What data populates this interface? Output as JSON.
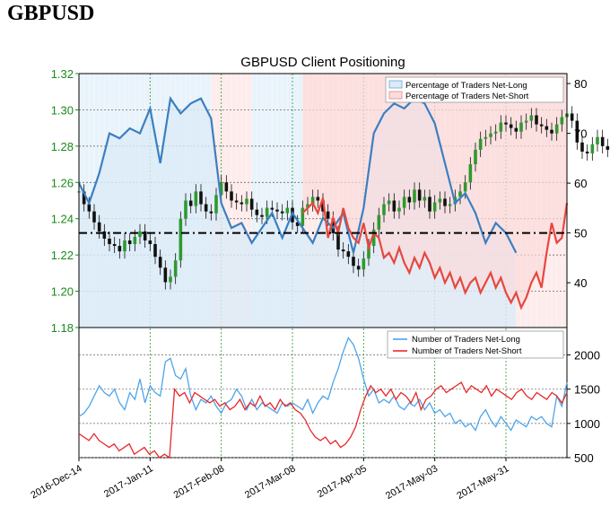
{
  "page_title": "GBPUSD",
  "chart_data": [
    {
      "type": "line",
      "title": "GBPUSD Client Positioning",
      "left_axis": {
        "ticks": [
          "1.18",
          "1.20",
          "1.22",
          "1.24",
          "1.26",
          "1.28",
          "1.30",
          "1.32"
        ],
        "range": [
          1.18,
          1.32
        ],
        "color": "#1a8a1a"
      },
      "right_axis": {
        "ticks": [
          "40",
          "50",
          "60",
          "70",
          "80"
        ],
        "range": [
          31,
          82
        ]
      },
      "reference_line": {
        "value": 50,
        "axis": "right",
        "style": "dash-dot"
      },
      "legend": {
        "placement": "top-right",
        "entries": [
          "Percentage of Traders Net-Long",
          "Percentage of Traders Net-Short"
        ]
      },
      "x_tick_labels": [
        "2016-Dec-14",
        "2017-Jan-11",
        "2017-Feb-08",
        "2017-Mar-08",
        "2017-Apr-05",
        "2017-May-03",
        "2017-May-31"
      ],
      "series": [
        {
          "name": "Percentage of Traders Net-Long",
          "color": "#3b7fc1",
          "fill": "#dcebf7",
          "x": [
            0,
            2,
            4,
            6,
            8,
            10,
            12,
            14,
            16,
            18,
            20,
            22,
            24,
            26,
            28,
            30,
            32,
            34,
            36,
            38,
            40,
            42,
            44,
            46,
            48,
            50,
            52,
            54,
            56,
            58,
            60,
            62,
            64,
            66,
            68,
            70,
            72,
            74,
            76,
            78,
            80,
            82,
            84,
            86
          ],
          "y": [
            60,
            56,
            62,
            70,
            69,
            71,
            70,
            75,
            64,
            77,
            74,
            76,
            77,
            73,
            56,
            51,
            52,
            48,
            51,
            54,
            49,
            54,
            51,
            48,
            53,
            51,
            54,
            46,
            55,
            70,
            74,
            76,
            75,
            77,
            76,
            72,
            64,
            56,
            58,
            54,
            48,
            52,
            50,
            46
          ]
        },
        {
          "name": "Percentage of Traders Net-Short",
          "color": "#e8473e",
          "fill": "#fbdcdc",
          "x": [
            44,
            45,
            46,
            47,
            48,
            49,
            50,
            51,
            52,
            53,
            54,
            55,
            56,
            57,
            58,
            59,
            60,
            61,
            62,
            63,
            64,
            65,
            66,
            67,
            68,
            69,
            70,
            71,
            72,
            73,
            74,
            75,
            76,
            77,
            78,
            79,
            80,
            81,
            82,
            83,
            84,
            85,
            86,
            87,
            88,
            89,
            90,
            91,
            92,
            93,
            94,
            95,
            96
          ],
          "y": [
            54,
            55,
            56,
            54,
            57,
            49,
            53,
            50,
            55,
            51,
            49,
            48,
            52,
            47,
            50,
            49,
            45,
            46,
            44,
            47,
            44,
            42,
            45,
            43,
            46,
            44,
            41,
            43,
            40,
            42,
            39,
            41,
            38,
            40,
            41,
            38,
            40,
            42,
            39,
            41,
            38,
            36,
            38,
            35,
            37,
            40,
            42,
            39,
            46,
            52,
            48,
            49,
            56
          ]
        },
        {
          "name": "GBPUSD price",
          "type": "candlestick-approx",
          "axis": "left",
          "y": [
            1.255,
            1.248,
            1.244,
            1.238,
            1.233,
            1.229,
            1.226,
            1.225,
            1.222,
            1.228,
            1.226,
            1.23,
            1.233,
            1.228,
            1.226,
            1.219,
            1.213,
            1.205,
            1.208,
            1.217,
            1.24,
            1.25,
            1.247,
            1.255,
            1.248,
            1.244,
            1.243,
            1.253,
            1.26,
            1.255,
            1.25,
            1.249,
            1.248,
            1.251,
            1.245,
            1.242,
            1.241,
            1.246,
            1.245,
            1.244,
            1.243,
            1.246,
            1.238,
            1.236,
            1.246,
            1.248,
            1.252,
            1.25,
            1.244,
            1.24,
            1.232,
            1.223,
            1.222,
            1.219,
            1.214,
            1.212,
            1.218,
            1.225,
            1.234,
            1.242,
            1.248,
            1.25,
            1.244,
            1.246,
            1.252,
            1.249,
            1.256,
            1.25,
            1.252,
            1.244,
            1.249,
            1.251,
            1.247,
            1.248,
            1.252,
            1.255,
            1.26,
            1.27,
            1.278,
            1.284,
            1.285,
            1.287,
            1.288,
            1.293,
            1.292,
            1.29,
            1.288,
            1.293,
            1.294,
            1.297,
            1.292,
            1.291,
            1.289,
            1.287,
            1.292,
            1.296,
            1.298,
            1.294,
            1.282,
            1.277,
            1.276,
            1.281,
            1.285,
            1.28,
            1.278,
            1.28,
            1.276,
            1.286,
            1.277,
            1.267,
            1.268
          ]
        }
      ]
    },
    {
      "type": "line",
      "right_axis": {
        "ticks": [
          "500",
          "1000",
          "1500",
          "2000"
        ],
        "range": [
          500,
          2400
        ]
      },
      "legend": {
        "placement": "top-right",
        "entries": [
          "Number of Traders Net-Long",
          "Number of Traders Net-Short"
        ]
      },
      "series": [
        {
          "name": "Number of Traders Net-Long",
          "color": "#4ea4e8",
          "y": [
            1100,
            1150,
            1250,
            1400,
            1550,
            1450,
            1400,
            1500,
            1300,
            1200,
            1450,
            1350,
            1650,
            1300,
            1550,
            1450,
            1400,
            1900,
            1950,
            1700,
            1650,
            1800,
            1400,
            1200,
            1350,
            1300,
            1400,
            1250,
            1150,
            1300,
            1350,
            1500,
            1400,
            1200,
            1350,
            1200,
            1300,
            1250,
            1200,
            1150,
            1300,
            1250,
            1300,
            1250,
            1200,
            1350,
            1150,
            1300,
            1400,
            1350,
            1600,
            1800,
            2050,
            2250,
            2150,
            1950,
            1650,
            1400,
            1500,
            1300,
            1350,
            1300,
            1400,
            1250,
            1200,
            1300,
            1250,
            1350,
            1200,
            1300,
            1150,
            1200,
            1100,
            1150,
            1000,
            1050,
            950,
            1000,
            900,
            1100,
            1200,
            1050,
            950,
            1100,
            1000,
            900,
            1050,
            1000,
            950,
            1100,
            1050,
            1100,
            1000,
            950,
            1400,
            1250,
            1600
          ]
        },
        {
          "name": "Number of Traders Net-Short",
          "color": "#e8282a",
          "y": [
            850,
            800,
            750,
            850,
            750,
            700,
            650,
            700,
            600,
            650,
            700,
            550,
            600,
            650,
            550,
            600,
            500,
            550,
            500,
            1500,
            1400,
            1450,
            1300,
            1450,
            1400,
            1350,
            1300,
            1350,
            1250,
            1300,
            1200,
            1250,
            1350,
            1200,
            1300,
            1250,
            1400,
            1250,
            1300,
            1200,
            1350,
            1250,
            1300,
            1200,
            1150,
            1050,
            900,
            800,
            750,
            800,
            700,
            750,
            650,
            700,
            800,
            950,
            1200,
            1400,
            1550,
            1450,
            1500,
            1400,
            1500,
            1350,
            1450,
            1400,
            1300,
            1450,
            1200,
            1350,
            1400,
            1500,
            1550,
            1450,
            1500,
            1550,
            1600,
            1450,
            1550,
            1500,
            1450,
            1550,
            1400,
            1500,
            1450,
            1400,
            1350,
            1450,
            1500,
            1400,
            1350,
            1450,
            1400,
            1350,
            1450,
            1400,
            1300,
            1450
          ]
        }
      ]
    }
  ]
}
